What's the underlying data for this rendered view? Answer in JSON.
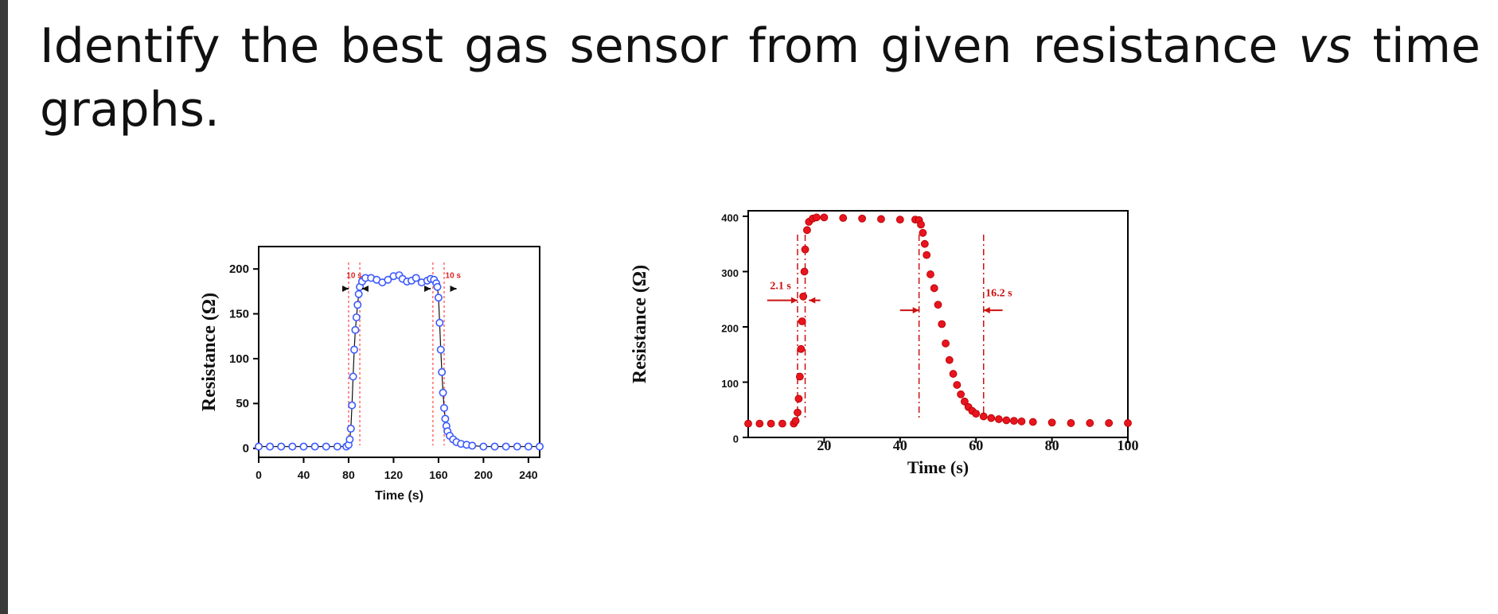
{
  "question": {
    "words_line1": [
      "Identify",
      "the",
      "best",
      "gas",
      "sensor",
      "from",
      "given",
      "resistance",
      "vs",
      "time"
    ],
    "italic_word": "vs",
    "line2": "graphs."
  },
  "chart_data": [
    {
      "type": "scatter",
      "title": "",
      "xlabel": "Time   (s)",
      "ylabel": "Resistance (Ω)",
      "xlim": [
        0,
        250
      ],
      "ylim": [
        -10,
        225
      ],
      "xticks": [
        0,
        40,
        80,
        120,
        160,
        200,
        240
      ],
      "yticks": [
        0,
        50,
        100,
        150,
        200
      ],
      "grid": false,
      "marker": "open-circle",
      "color": "#3d5afe",
      "line_color": "#111111",
      "annotations": [
        {
          "text": "10 s",
          "x": 85,
          "y": 190,
          "color": "#e02020"
        },
        {
          "text": "10 s",
          "x": 173,
          "y": 190,
          "color": "#e02020"
        }
      ],
      "guides": [
        80,
        90,
        155,
        165
      ],
      "series": [
        {
          "x": [
            0,
            10,
            20,
            30,
            40,
            50,
            60,
            70,
            78,
            80,
            81,
            82,
            83,
            84,
            85,
            86,
            87,
            88,
            89,
            90,
            92,
            95,
            100,
            105,
            110,
            115,
            120,
            125,
            128,
            132,
            136,
            140,
            145,
            150,
            153,
            156,
            158,
            159,
            160,
            161,
            162,
            163,
            164,
            165,
            166,
            167,
            168,
            170,
            173,
            176,
            180,
            185,
            190,
            200,
            210,
            220,
            230,
            240,
            250
          ],
          "y": [
            2,
            2,
            2,
            2,
            2,
            2,
            2,
            2,
            2,
            4,
            10,
            22,
            48,
            80,
            110,
            132,
            146,
            160,
            172,
            180,
            186,
            190,
            190,
            188,
            185,
            188,
            192,
            193,
            189,
            186,
            187,
            190,
            185,
            187,
            189,
            188,
            184,
            180,
            168,
            140,
            110,
            85,
            62,
            45,
            33,
            25,
            19,
            14,
            10,
            7,
            5,
            4,
            3,
            2,
            2,
            2,
            2,
            2,
            2
          ]
        }
      ]
    },
    {
      "type": "scatter",
      "title": "",
      "xlabel": "Time (s)",
      "ylabel": "Resistance (Ω)",
      "xlim": [
        0,
        100
      ],
      "ylim": [
        0,
        410
      ],
      "xticks": [
        20,
        40,
        60,
        80,
        100
      ],
      "yticks": [
        0,
        100,
        200,
        300,
        400
      ],
      "grid": false,
      "marker": "filled-circle",
      "color": "#e8141e",
      "annotations": [
        {
          "text": "2.1 s",
          "x": 8.5,
          "y": 268,
          "color": "#cc1111"
        },
        {
          "text": "16.2 s",
          "x": 66,
          "y": 255,
          "color": "#cc1111"
        }
      ],
      "guides": [
        13,
        15,
        45,
        62
      ],
      "series": [
        {
          "x": [
            0,
            3,
            6,
            9,
            12,
            12.5,
            13,
            13.3,
            13.6,
            13.9,
            14.2,
            14.5,
            14.8,
            15,
            15.5,
            16,
            17,
            18,
            20,
            25,
            30,
            35,
            40,
            44,
            45,
            45.5,
            46,
            46.5,
            47,
            48,
            49,
            50,
            51,
            52,
            53,
            54,
            55,
            56,
            57,
            58,
            59,
            60,
            62,
            64,
            66,
            68,
            70,
            72,
            75,
            80,
            85,
            90,
            95,
            100
          ],
          "y": [
            25,
            25,
            25,
            25,
            25,
            30,
            45,
            70,
            110,
            160,
            210,
            255,
            300,
            340,
            375,
            390,
            396,
            398,
            398,
            397,
            396,
            395,
            394,
            394,
            393,
            385,
            370,
            350,
            330,
            295,
            270,
            240,
            205,
            170,
            140,
            115,
            95,
            78,
            65,
            55,
            48,
            43,
            38,
            35,
            33,
            31,
            30,
            29,
            28,
            27,
            26,
            26,
            26,
            26
          ]
        }
      ]
    }
  ]
}
